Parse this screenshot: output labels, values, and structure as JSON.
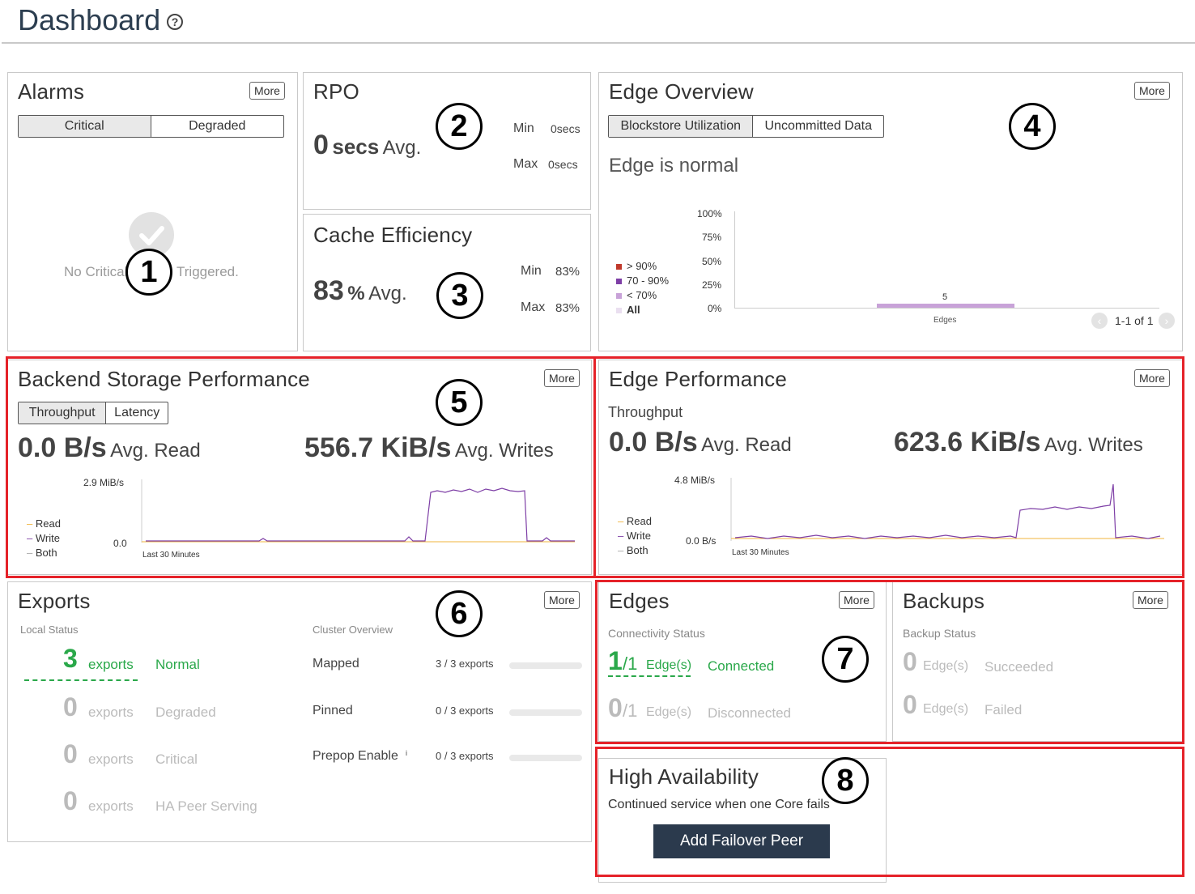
{
  "page": {
    "title": "Dashboard",
    "help_icon": "?"
  },
  "alarms": {
    "title": "Alarms",
    "more": "More",
    "tabs": [
      "Critical",
      "Degraded"
    ],
    "message": "No Critical Alarms Triggered.",
    "msg_left": "No Critical",
    "msg_right": "Triggered."
  },
  "rpo": {
    "title": "RPO",
    "avg_value": "0",
    "avg_unit": "secs",
    "avg_label": "Avg.",
    "min_label": "Min",
    "min_value": "0secs",
    "max_label": "Max",
    "max_value": "0secs"
  },
  "cache": {
    "title": "Cache Efficiency",
    "avg_value": "83",
    "avg_unit": "%",
    "avg_label": "Avg.",
    "min_label": "Min",
    "min_value": "83%",
    "max_label": "Max",
    "max_value": "83%"
  },
  "edge_overview": {
    "title": "Edge Overview",
    "more": "More",
    "tabs": [
      "Blockstore Utilization",
      "Uncommitted Data"
    ],
    "status": "Edge is normal",
    "legend": [
      {
        "label": "> 90%",
        "color": "#c0392b"
      },
      {
        "label": "70 - 90%",
        "color": "#7e3fa6"
      },
      {
        "label": "< 70%",
        "color": "#c8a2d8"
      },
      {
        "label": "All",
        "color": "#eadff0"
      }
    ],
    "yticks": [
      "100%",
      "75%",
      "50%",
      "25%",
      "0%"
    ],
    "bar_label": "5",
    "xlabel": "Edges",
    "pager": "1-1 of 1",
    "chart_data": {
      "type": "bar",
      "categories": [
        "Edges"
      ],
      "values": [
        5
      ],
      "ylabels": [
        "0%",
        "25%",
        "50%",
        "75%",
        "100%"
      ]
    }
  },
  "backend": {
    "title": "Backend Storage Performance",
    "more": "More",
    "tabs": [
      "Throughput",
      "Latency"
    ],
    "read_value": "0.0 B/s",
    "read_label": "Avg. Read",
    "write_value": "556.7 KiB/s",
    "write_label": "Avg. Writes",
    "ymax": "2.9 MiB/s",
    "ymin": "0.0",
    "xlabel": "Last 30 Minutes",
    "legend": [
      "Read",
      "Write",
      "Both"
    ],
    "legend_colors": [
      "#f0b43c",
      "#7e3fa6",
      "#aaaaaa"
    ]
  },
  "edge_perf": {
    "title": "Edge Performance",
    "more": "More",
    "subtitle": "Throughput",
    "read_value": "0.0 B/s",
    "read_label": "Avg. Read",
    "write_value": "623.6 KiB/s",
    "write_label": "Avg. Writes",
    "ymax": "4.8 MiB/s",
    "ymin": "0.0 B/s",
    "xlabel": "Last 30 Minutes",
    "legend": [
      "Read",
      "Write",
      "Both"
    ]
  },
  "exports": {
    "title": "Exports",
    "more": "More",
    "local_status": "Local Status",
    "cluster_overview": "Cluster Overview",
    "rows": [
      {
        "count": "3",
        "unit": "exports",
        "status": "Normal"
      },
      {
        "count": "0",
        "unit": "exports",
        "status": "Degraded"
      },
      {
        "count": "0",
        "unit": "exports",
        "status": "Critical"
      },
      {
        "count": "0",
        "unit": "exports",
        "status": "HA Peer Serving"
      }
    ],
    "cluster": [
      {
        "label": "Mapped",
        "value": "3 / 3 exports"
      },
      {
        "label": "Pinned",
        "value": "0 / 3 exports"
      },
      {
        "label": "Prepop Enable",
        "value": "0 / 3 exports"
      }
    ]
  },
  "edges": {
    "title": "Edges",
    "more": "More",
    "subtitle": "Connectivity Status",
    "rows": [
      {
        "count": "1",
        "total": "/1",
        "unit": "Edge(s)",
        "status": "Connected"
      },
      {
        "count": "0",
        "total": "/1",
        "unit": "Edge(s)",
        "status": "Disconnected"
      }
    ]
  },
  "backups": {
    "title": "Backups",
    "more": "More",
    "subtitle": "Backup Status",
    "rows": [
      {
        "count": "0",
        "unit": "Edge(s)",
        "status": "Succeeded"
      },
      {
        "count": "0",
        "unit": "Edge(s)",
        "status": "Failed"
      }
    ]
  },
  "ha": {
    "title": "High Availability",
    "description": "Continued service when one Core fails",
    "button": "Add Failover Peer"
  },
  "callouts": [
    "1",
    "2",
    "3",
    "4",
    "5",
    "6",
    "7",
    "8"
  ]
}
